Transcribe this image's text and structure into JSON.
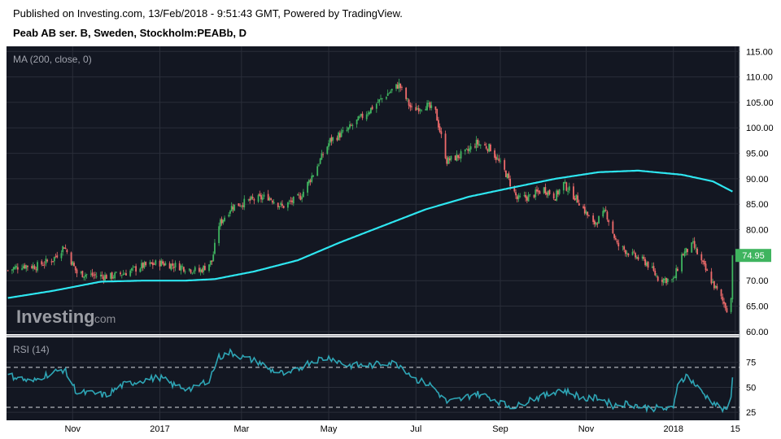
{
  "header": {
    "published": "Published on Investing.com, 13/Feb/2018 - 9:51:43 GMT, Powered by TradingView.",
    "instrument": "Peab AB ser. B, Sweden, Stockholm:PEABb, D"
  },
  "watermark": {
    "brand": "Investing",
    "suffix": ".com"
  },
  "colors": {
    "background": "#131722",
    "grid": "#2a2e39",
    "up": "#3fb45f",
    "down": "#ef6b6b",
    "ma": "#2ee6f0",
    "rsi": "#2ea5b5",
    "price_badge": "#3fb45f"
  },
  "chart_data": {
    "type": "candlestick",
    "main_pane": {
      "indicator_label": "MA (200, close, 0)",
      "ylim": [
        59.5,
        116
      ],
      "y_ticks": [
        "60.00",
        "65.00",
        "70.00",
        "75.00",
        "80.00",
        "85.00",
        "90.00",
        "95.00",
        "100.00",
        "105.00",
        "110.00",
        "115.00"
      ],
      "last_price_label": "74.95",
      "close_anchors": [
        [
          "2016-09-16",
          72.0
        ],
        [
          "2016-09-26",
          73.0
        ],
        [
          "2016-10-06",
          72.8
        ],
        [
          "2016-10-18",
          74.2
        ],
        [
          "2016-10-26",
          76.8
        ],
        [
          "2016-11-04",
          71.5
        ],
        [
          "2016-11-16",
          71.0
        ],
        [
          "2016-11-28",
          70.8
        ],
        [
          "2016-12-08",
          71.5
        ],
        [
          "2016-12-20",
          72.8
        ],
        [
          "2017-01-02",
          73.5
        ],
        [
          "2017-01-16",
          72.8
        ],
        [
          "2017-01-30",
          71.8
        ],
        [
          "2017-02-08",
          73.8
        ],
        [
          "2017-02-13",
          81.0
        ],
        [
          "2017-02-22",
          84.5
        ],
        [
          "2017-03-08",
          85.8
        ],
        [
          "2017-03-20",
          86.5
        ],
        [
          "2017-03-30",
          84.5
        ],
        [
          "2017-04-12",
          86.5
        ],
        [
          "2017-04-21",
          91.0
        ],
        [
          "2017-05-03",
          97.5
        ],
        [
          "2017-05-15",
          99.5
        ],
        [
          "2017-05-31",
          103.5
        ],
        [
          "2017-06-12",
          106.5
        ],
        [
          "2017-06-21",
          108.5
        ],
        [
          "2017-06-30",
          103.5
        ],
        [
          "2017-07-10",
          104.5
        ],
        [
          "2017-07-17",
          103.0
        ],
        [
          "2017-07-25",
          93.5
        ],
        [
          "2017-08-07",
          95.0
        ],
        [
          "2017-08-15",
          97.0
        ],
        [
          "2017-08-25",
          96.0
        ],
        [
          "2017-09-05",
          91.0
        ],
        [
          "2017-09-13",
          86.0
        ],
        [
          "2017-09-22",
          86.5
        ],
        [
          "2017-10-02",
          88.0
        ],
        [
          "2017-10-10",
          86.5
        ],
        [
          "2017-10-16",
          89.0
        ],
        [
          "2017-10-27",
          85.5
        ],
        [
          "2017-11-06",
          81.0
        ],
        [
          "2017-11-15",
          83.5
        ],
        [
          "2017-11-23",
          77.0
        ],
        [
          "2017-12-04",
          75.0
        ],
        [
          "2017-12-14",
          73.5
        ],
        [
          "2017-12-22",
          70.5
        ],
        [
          "2018-01-02",
          70.0
        ],
        [
          "2018-01-08",
          75.0
        ],
        [
          "2018-01-16",
          77.0
        ],
        [
          "2018-01-25",
          72.0
        ],
        [
          "2018-02-01",
          68.5
        ],
        [
          "2018-02-06",
          66.0
        ],
        [
          "2018-02-09",
          64.5
        ],
        [
          "2018-02-12",
          66.5
        ],
        [
          "2018-02-13",
          74.95
        ]
      ],
      "ma200_anchors": [
        [
          "2016-09-16",
          66.6
        ],
        [
          "2016-10-18",
          68.0
        ],
        [
          "2016-11-21",
          69.8
        ],
        [
          "2016-12-20",
          70.0
        ],
        [
          "2017-01-20",
          70.0
        ],
        [
          "2017-02-10",
          70.3
        ],
        [
          "2017-03-10",
          71.8
        ],
        [
          "2017-04-10",
          74.0
        ],
        [
          "2017-05-10",
          77.5
        ],
        [
          "2017-06-10",
          80.8
        ],
        [
          "2017-07-10",
          84.0
        ],
        [
          "2017-08-10",
          86.5
        ],
        [
          "2017-09-10",
          88.3
        ],
        [
          "2017-10-10",
          90.0
        ],
        [
          "2017-11-10",
          91.3
        ],
        [
          "2017-12-08",
          91.6
        ],
        [
          "2018-01-08",
          90.8
        ],
        [
          "2018-01-30",
          89.5
        ],
        [
          "2018-02-13",
          87.5
        ]
      ]
    },
    "rsi_pane": {
      "indicator_label": "RSI (14)",
      "ylim": [
        17,
        100
      ],
      "y_ticks": [
        "25",
        "50",
        "75"
      ],
      "levels": [
        30,
        70
      ],
      "anchors": [
        [
          "2016-09-16",
          62
        ],
        [
          "2016-09-23",
          60
        ],
        [
          "2016-10-03",
          55
        ],
        [
          "2016-10-12",
          62
        ],
        [
          "2016-10-26",
          68
        ],
        [
          "2016-11-04",
          45
        ],
        [
          "2016-11-14",
          44
        ],
        [
          "2016-11-25",
          42
        ],
        [
          "2016-12-06",
          52
        ],
        [
          "2016-12-20",
          57
        ],
        [
          "2017-01-02",
          60
        ],
        [
          "2017-01-12",
          52
        ],
        [
          "2017-01-25",
          48
        ],
        [
          "2017-02-06",
          58
        ],
        [
          "2017-02-13",
          80
        ],
        [
          "2017-02-21",
          85
        ],
        [
          "2017-03-02",
          80
        ],
        [
          "2017-03-14",
          75
        ],
        [
          "2017-03-21",
          68
        ],
        [
          "2017-04-03",
          62
        ],
        [
          "2017-04-12",
          70
        ],
        [
          "2017-04-21",
          77
        ],
        [
          "2017-05-03",
          80
        ],
        [
          "2017-05-15",
          72
        ],
        [
          "2017-06-01",
          72
        ],
        [
          "2017-06-14",
          75
        ],
        [
          "2017-06-22",
          72
        ],
        [
          "2017-07-03",
          58
        ],
        [
          "2017-07-14",
          52
        ],
        [
          "2017-07-25",
          35
        ],
        [
          "2017-08-04",
          38
        ],
        [
          "2017-08-14",
          44
        ],
        [
          "2017-08-25",
          40
        ],
        [
          "2017-09-05",
          32
        ],
        [
          "2017-09-13",
          31
        ],
        [
          "2017-09-22",
          38
        ],
        [
          "2017-10-04",
          42
        ],
        [
          "2017-10-13",
          48
        ],
        [
          "2017-10-20",
          45
        ],
        [
          "2017-11-01",
          38
        ],
        [
          "2017-11-10",
          40
        ],
        [
          "2017-11-20",
          32
        ],
        [
          "2017-12-01",
          34
        ],
        [
          "2017-12-12",
          30
        ],
        [
          "2017-12-21",
          29
        ],
        [
          "2018-01-02",
          28
        ],
        [
          "2018-01-05",
          55
        ],
        [
          "2018-01-12",
          62
        ],
        [
          "2018-01-19",
          50
        ],
        [
          "2018-01-26",
          40
        ],
        [
          "2018-02-02",
          32
        ],
        [
          "2018-02-08",
          26
        ],
        [
          "2018-02-12",
          38
        ],
        [
          "2018-02-13",
          60
        ]
      ]
    },
    "x_axis": {
      "tick_labels": [
        {
          "label": "Nov",
          "date": "2016-11-01"
        },
        {
          "label": "2017",
          "date": "2017-01-02"
        },
        {
          "label": "Mar",
          "date": "2017-03-01"
        },
        {
          "label": "May",
          "date": "2017-05-02"
        },
        {
          "label": "Jul",
          "date": "2017-07-03"
        },
        {
          "label": "Sep",
          "date": "2017-09-01"
        },
        {
          "label": "Nov",
          "date": "2017-11-01"
        },
        {
          "label": "2018",
          "date": "2018-01-02"
        },
        {
          "label": "15",
          "date": "2018-02-15"
        }
      ],
      "xlim": [
        "2016-09-15",
        "2018-02-18"
      ]
    }
  }
}
